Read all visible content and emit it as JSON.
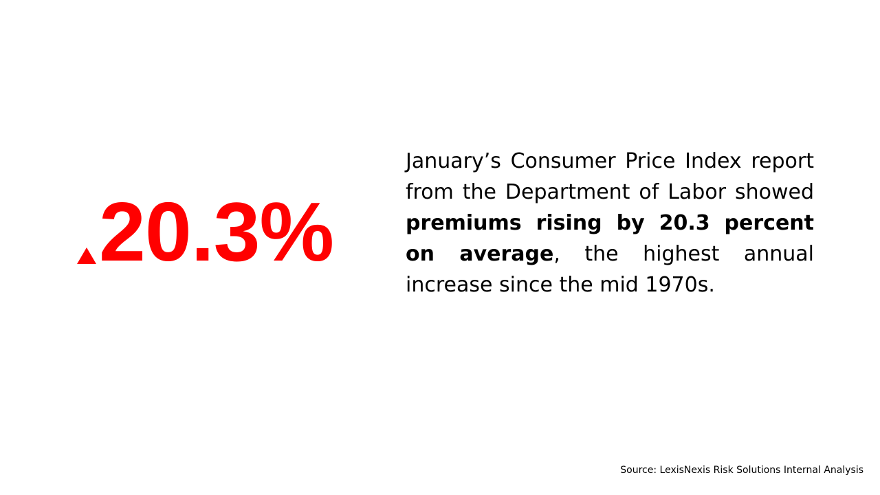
{
  "stat": {
    "value": "20.3%",
    "trend_icon": "up-triangle-icon",
    "color": "#ff0000"
  },
  "body": {
    "part1": "January’s Consumer Price Index report from the Department of Labor showed ",
    "bold": "premiums rising by 20.3 percent on average",
    "part2": ", the highest annual increase since the mid 1970s."
  },
  "source": "Source: LexisNexis Risk Solutions Internal Analysis"
}
